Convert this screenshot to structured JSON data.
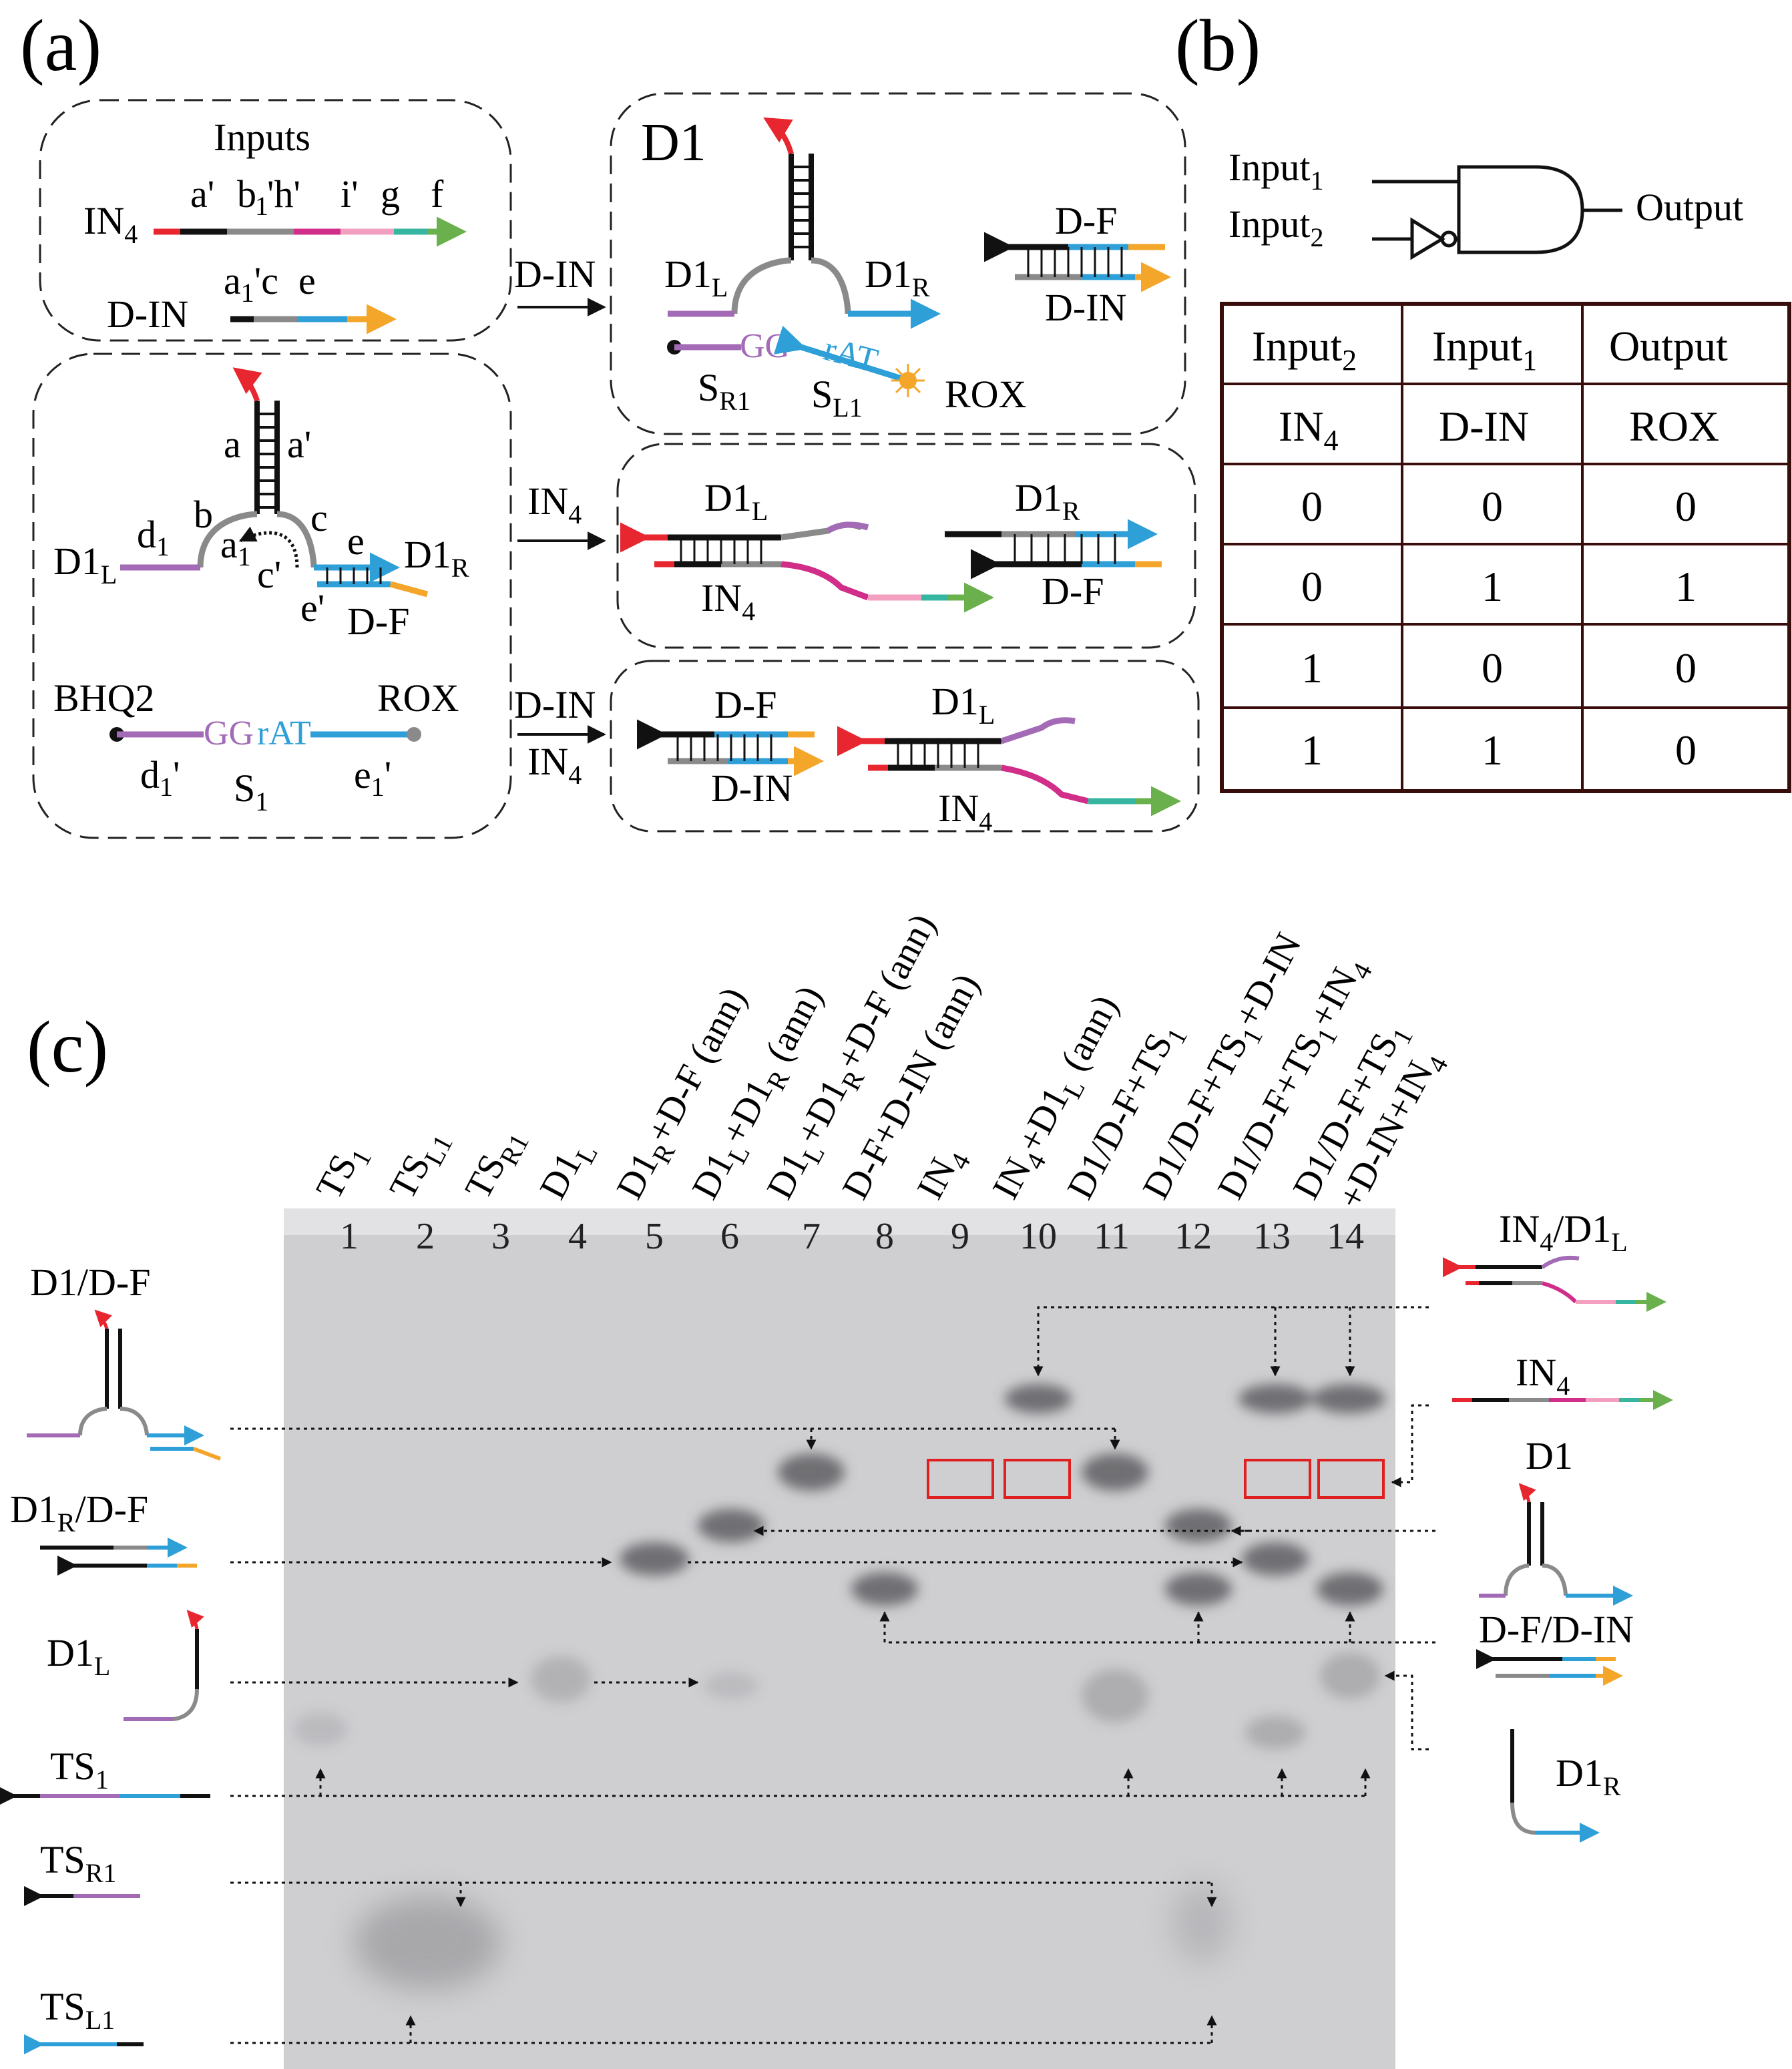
{
  "panel_labels": {
    "a": "(a)",
    "b": "(b)",
    "c": "(c)"
  },
  "colors": {
    "red": "#e8262f",
    "black": "#111111",
    "magenta": "#d12e8a",
    "pink": "#f3a0c0",
    "teal": "#36b6a0",
    "green": "#6ab04c",
    "gray": "#8a8a8a",
    "blue": "#2f9fd8",
    "orange": "#f4a62a",
    "purple": "#a36ab6",
    "gel_bg": "#cfcfd2",
    "band": "#6f7073",
    "highlight": "#e02020"
  },
  "panel_a": {
    "inputs_title": "Inputs",
    "in4": {
      "name": "IN",
      "sub": "4",
      "domains": [
        "a'",
        "b",
        "1",
        "'h'",
        "i'",
        "g",
        "f"
      ]
    },
    "din": {
      "name": "D-IN",
      "domains": [
        "a",
        "1",
        "'c",
        "e"
      ]
    },
    "d1_structure": {
      "stem": [
        "a",
        "a'"
      ],
      "domains": [
        "d",
        "1",
        "b",
        "c",
        "e",
        "a",
        "1",
        "c'",
        "e'"
      ],
      "left": "D1",
      "left_sub": "L",
      "right": "D1",
      "right_sub": "R",
      "df": "D-F"
    },
    "substrate": {
      "bhq": "BHQ2",
      "rox": "ROX",
      "gg": "GG",
      "rat": "rAT",
      "d1p": "d",
      "d1p_sub": "1",
      "d1p_prime": "'",
      "s1": "S",
      "s1_sub": "1",
      "e1p": "e",
      "e1p_sub": "1",
      "e1p_prime": "'"
    },
    "arrows": [
      {
        "top": "D-IN",
        "bottom": ""
      },
      {
        "top": "IN",
        "top_sub": "4",
        "bottom": ""
      },
      {
        "top": "D-IN",
        "bottom": "IN",
        "bottom_sub": "4"
      }
    ],
    "box_d1": {
      "title": "D1",
      "left": "D1",
      "left_sub": "L",
      "right": "D1",
      "right_sub": "R",
      "df": "D-F",
      "din": "D-IN",
      "sr1": "S",
      "sr1_sub": "R1",
      "sl1": "S",
      "sl1_sub": "L1",
      "rox": "ROX",
      "gg": "GG",
      "rat": "rAT"
    },
    "box_in4": {
      "d1l": "D1",
      "d1l_sub": "L",
      "in4": "IN",
      "in4_sub": "4",
      "d1r": "D1",
      "d1r_sub": "R",
      "df": "D-F"
    },
    "box_both": {
      "df": "D-F",
      "din": "D-IN",
      "d1l": "D1",
      "d1l_sub": "L",
      "in4": "IN",
      "in4_sub": "4"
    }
  },
  "panel_b": {
    "input1": "Input",
    "input1_sub": "1",
    "input2": "Input",
    "input2_sub": "2",
    "output": "Output",
    "table": {
      "headers": [
        {
          "t": "Input",
          "s": "2"
        },
        {
          "t": "Input",
          "s": "1"
        },
        {
          "t": "Output",
          "s": ""
        }
      ],
      "subheaders": [
        {
          "t": "IN",
          "s": "4"
        },
        {
          "t": "D-IN",
          "s": ""
        },
        {
          "t": "ROX",
          "s": ""
        }
      ],
      "rows": [
        [
          "0",
          "0",
          "0"
        ],
        [
          "0",
          "1",
          "1"
        ],
        [
          "1",
          "0",
          "0"
        ],
        [
          "1",
          "1",
          "0"
        ]
      ]
    }
  },
  "panel_c": {
    "lanes": [
      {
        "n": "1",
        "label": "TS",
        "sub": "1",
        "rest": ""
      },
      {
        "n": "2",
        "label": "TS",
        "sub": "L1",
        "rest": ""
      },
      {
        "n": "3",
        "label": "TS",
        "sub": "R1",
        "rest": ""
      },
      {
        "n": "4",
        "label": "D1",
        "sub": "L",
        "rest": ""
      },
      {
        "n": "5",
        "label": "D1",
        "sub": "R",
        "rest": "+D-F (ann)"
      },
      {
        "n": "6",
        "label": "D1",
        "sub": "L",
        "rest": "+D1",
        "sub2": "R",
        "rest2": " (ann)"
      },
      {
        "n": "7",
        "label": "D1",
        "sub": "L",
        "rest": "+D1",
        "sub2": "R",
        "rest2": "+D-F (ann)"
      },
      {
        "n": "8",
        "label": "D-F+D-IN (ann)",
        "sub": "",
        "rest": ""
      },
      {
        "n": "9",
        "label": "IN",
        "sub": "4",
        "rest": ""
      },
      {
        "n": "10",
        "label": "IN",
        "sub": "4",
        "rest": "+D1",
        "sub2": "L",
        "rest2": " (ann)"
      },
      {
        "n": "11",
        "label": "D1/D-F+TS",
        "sub": "1",
        "rest": ""
      },
      {
        "n": "12",
        "label": "D1/D-F+TS",
        "sub": "1",
        "rest": "+D-IN"
      },
      {
        "n": "13",
        "label": "D1/D-F+TS",
        "sub": "1",
        "rest": "+IN",
        "sub2": "4",
        "rest2": ""
      },
      {
        "n": "14",
        "label": "D1/D-F+TS",
        "sub": "1",
        "rest": "",
        "line2": "+D-IN+IN",
        "line2_sub": "4"
      }
    ],
    "left_legend": [
      {
        "t": "D1/D-F",
        "s": ""
      },
      {
        "t": "D1",
        "s": "R",
        "t2": "/D-F"
      },
      {
        "t": "D1",
        "s": "L"
      },
      {
        "t": "TS",
        "s": "1"
      },
      {
        "t": "TS",
        "s": "R1"
      },
      {
        "t": "TS",
        "s": "L1"
      }
    ],
    "right_legend": [
      {
        "t": "IN",
        "s": "4",
        "t2": "/D1",
        "s2": "L"
      },
      {
        "t": "IN",
        "s": "4"
      },
      {
        "t": "D1",
        "s": ""
      },
      {
        "t": "D-F/D-IN",
        "s": ""
      },
      {
        "t": "D1",
        "s": "R"
      }
    ]
  }
}
